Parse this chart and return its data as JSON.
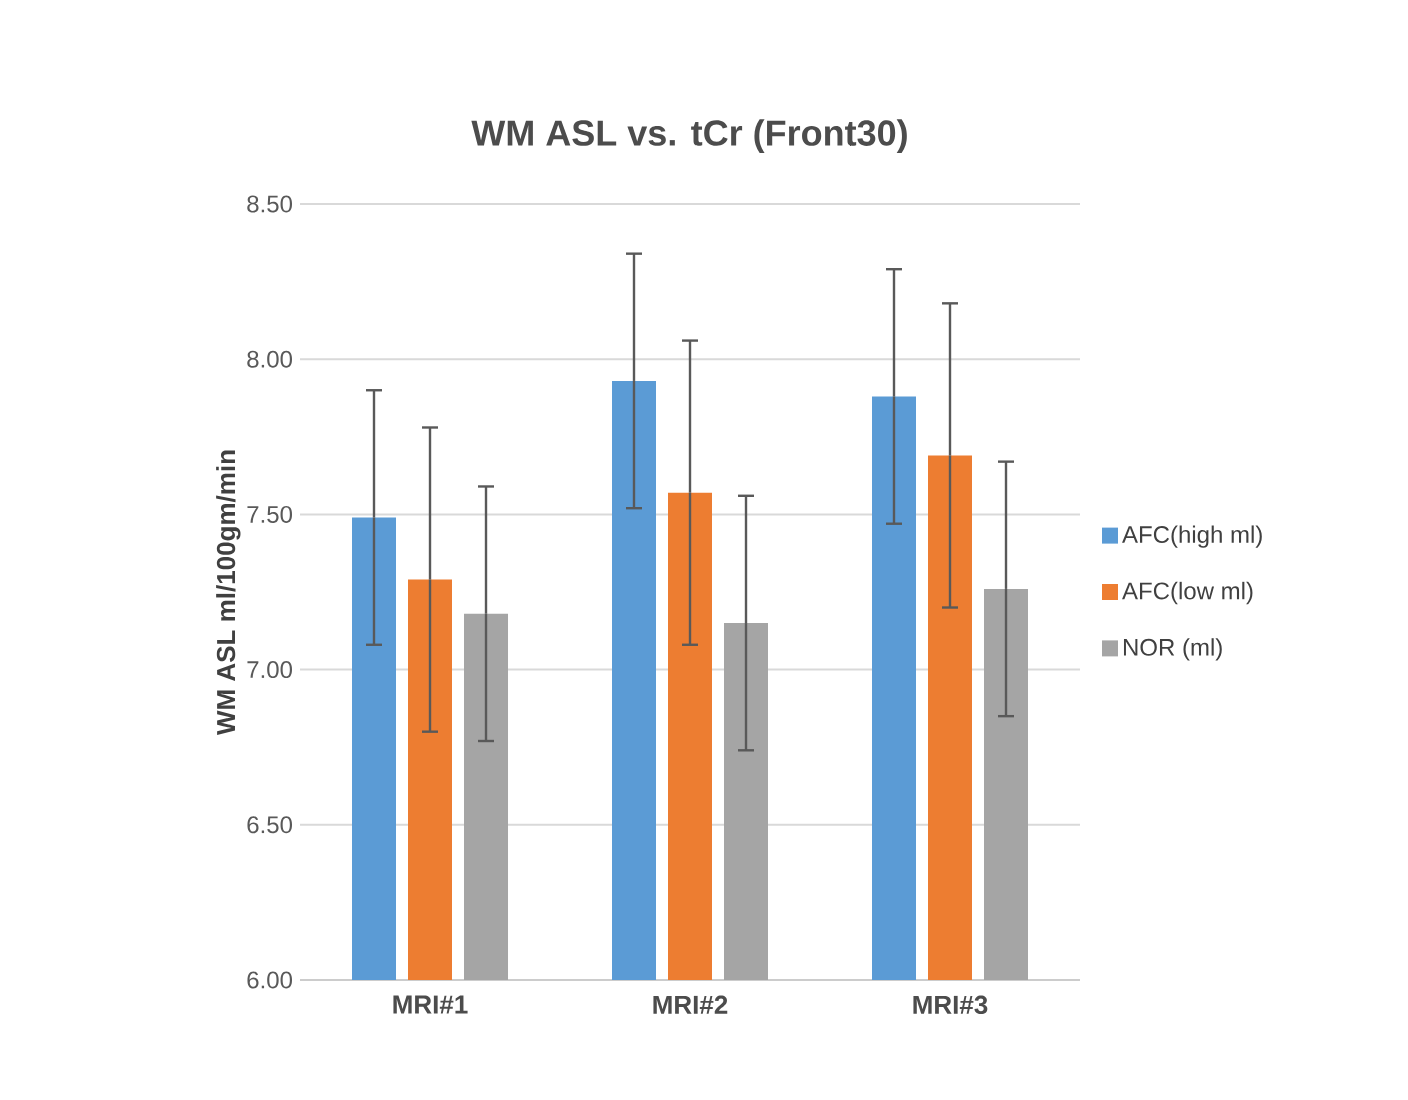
{
  "chart_data": {
    "type": "bar",
    "title": "WM ASL vs. tCr (Front30)",
    "ylabel": "WM ASL ml/100gm/min",
    "categories": [
      "MRI#1",
      "MRI#2",
      "MRI#3"
    ],
    "series": [
      {
        "name": "AFC(high ml)",
        "color": "#5b9bd5",
        "values": [
          7.49,
          7.93,
          7.88
        ],
        "errors": [
          0.41,
          0.41,
          0.41
        ]
      },
      {
        "name": "AFC(low ml)",
        "color": "#ed7d31",
        "values": [
          7.29,
          7.57,
          7.69
        ],
        "errors": [
          0.49,
          0.49,
          0.49
        ]
      },
      {
        "name": "NOR (ml)",
        "color": "#a5a5a5",
        "values": [
          7.18,
          7.15,
          7.26
        ],
        "errors": [
          0.41,
          0.41,
          0.41
        ]
      }
    ],
    "ylim": [
      6,
      8.5
    ],
    "yticks": [
      {
        "value": 6,
        "label": "6.00"
      },
      {
        "value": 6.5,
        "label": "6.50"
      },
      {
        "value": 7,
        "label": "7.00"
      },
      {
        "value": 7.5,
        "label": "7.50"
      },
      {
        "value": 8,
        "label": "8.00"
      },
      {
        "value": 8.5,
        "label": "8.50"
      }
    ],
    "grid": "y",
    "legend": "right"
  }
}
